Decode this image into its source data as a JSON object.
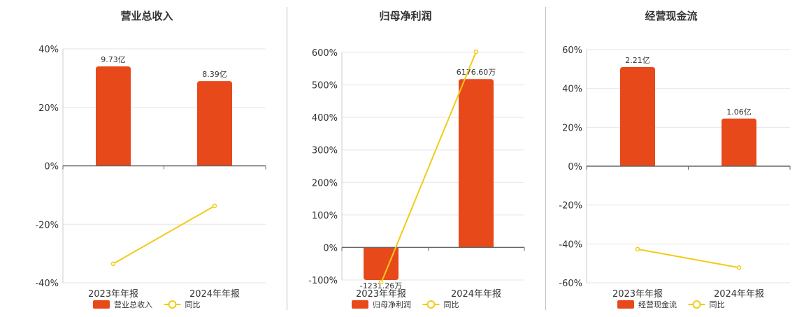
{
  "colors": {
    "bar": "#E8491B",
    "line": "#F2CB17",
    "grid": "#e6e6e6",
    "axis": "#666666"
  },
  "chart_data": [
    {
      "type": "bar",
      "title": "营业总收入",
      "categories": [
        "2023年年报",
        "2024年年报"
      ],
      "bar_labels": [
        "9.73亿",
        "8.39亿"
      ],
      "bar_values": [
        34,
        29
      ],
      "line_values": [
        -33.5,
        -13.7
      ],
      "ylim": [
        -40,
        40
      ],
      "yticks": [
        -40,
        -20,
        0,
        20,
        40
      ],
      "ytick_labels": [
        "-40%",
        "-20%",
        "0%",
        "20%",
        "40%"
      ],
      "legend": [
        "营业总收入",
        "同比"
      ]
    },
    {
      "type": "bar",
      "title": "归母净利润",
      "categories": [
        "2023年年报",
        "2024年年报"
      ],
      "bar_labels": [
        "-1231.26万",
        "6176.60万"
      ],
      "bar_values": [
        -100,
        518
      ],
      "line_values": [
        -110,
        602
      ],
      "ylim": [
        -100,
        600
      ],
      "yticks": [
        -100,
        0,
        100,
        200,
        300,
        400,
        500,
        600
      ],
      "ytick_labels": [
        "-100%",
        "0%",
        "100%",
        "200%",
        "300%",
        "400%",
        "500%",
        "600%"
      ],
      "legend": [
        "归母净利润",
        "同比"
      ]
    },
    {
      "type": "bar",
      "title": "经营现金流",
      "categories": [
        "2023年年报",
        "2024年年报"
      ],
      "bar_labels": [
        "2.21亿",
        "1.06亿"
      ],
      "bar_values": [
        51,
        24.5
      ],
      "line_values": [
        -42.7,
        -52.2
      ],
      "ylim": [
        -60,
        60
      ],
      "yticks": [
        -60,
        -40,
        -20,
        0,
        20,
        40,
        60
      ],
      "ytick_labels": [
        "-60%",
        "-40%",
        "-20%",
        "0%",
        "20%",
        "40%",
        "60%"
      ],
      "legend": [
        "经营现金流",
        "同比"
      ]
    }
  ]
}
